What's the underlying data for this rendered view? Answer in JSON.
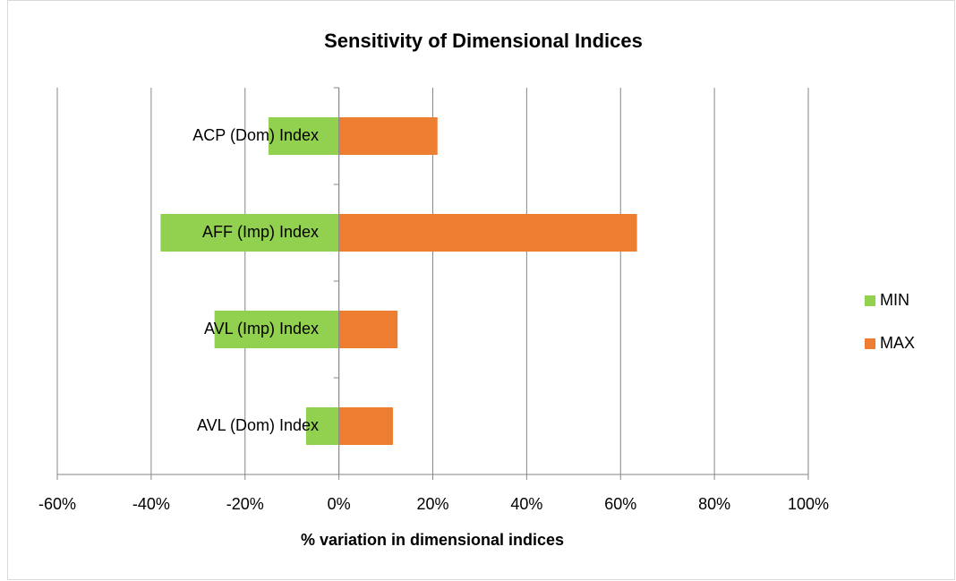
{
  "chart_data": {
    "type": "bar",
    "orientation": "horizontal",
    "title": "Sensitivity of Dimensional Indices",
    "x_label": "% variation in dimensional indices",
    "categories": [
      "ACP (Dom) Index",
      "AFF (Imp) Index",
      "AVL (Imp) Index",
      "AVL (Dom) Index"
    ],
    "series": [
      {
        "name": "MIN",
        "color": "#92d050",
        "values": [
          -15,
          -38,
          -26.5,
          -7
        ]
      },
      {
        "name": "MAX",
        "color": "#ed7d31",
        "values": [
          21,
          63.5,
          12.5,
          11.5
        ]
      }
    ],
    "xlim": [
      -60,
      100
    ],
    "xticks": [
      {
        "value": -60,
        "label": "-60%"
      },
      {
        "value": -40,
        "label": "-40%"
      },
      {
        "value": -20,
        "label": "-20%"
      },
      {
        "value": 0,
        "label": "0%"
      },
      {
        "value": 20,
        "label": "20%"
      },
      {
        "value": 40,
        "label": "40%"
      },
      {
        "value": 60,
        "label": "60%"
      },
      {
        "value": 80,
        "label": "80%"
      },
      {
        "value": 100,
        "label": "100%"
      }
    ],
    "grid": true,
    "legend": "right"
  }
}
